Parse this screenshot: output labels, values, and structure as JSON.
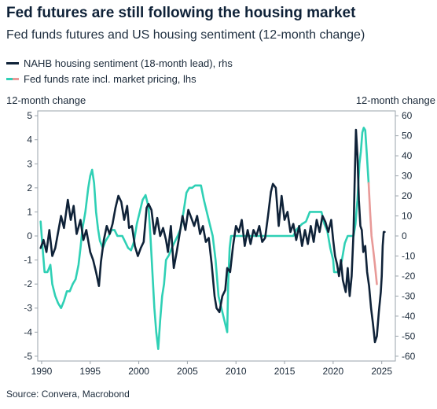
{
  "title": "Fed futures are still following the housing market",
  "subtitle": "Fed funds futures and US housing sentiment (12-month change)",
  "source": "Source: Convera, Macrobond",
  "chart_data": {
    "type": "line",
    "title": "Fed futures are still following the housing market",
    "subtitle": "Fed funds futures and US housing sentiment (12-month change)",
    "ylabel_left": "12-month change",
    "ylabel_right": "12-month change",
    "x_ticks": [
      "1990",
      "1995",
      "2000",
      "2005",
      "2010",
      "2015",
      "2020",
      "2025"
    ],
    "xlim": [
      1989.6,
      2026.4
    ],
    "y_left": {
      "lim": [
        -5.2,
        5.2
      ],
      "ticks": [
        5,
        4,
        3,
        2,
        1,
        0,
        -1,
        -2,
        -3,
        -4,
        -5
      ]
    },
    "y_right": {
      "lim": [
        -62.4,
        62.4
      ],
      "ticks": [
        60,
        50,
        40,
        30,
        20,
        10,
        0,
        -10,
        -20,
        -30,
        -40,
        -50,
        -60
      ]
    },
    "legend": "top-left",
    "grid": false,
    "series": [
      {
        "name": "NAHB housing sentiment (18-month lead), rhs",
        "axis": "right",
        "color": "#0f2238",
        "points": [
          [
            1989.9,
            -6
          ],
          [
            1990.2,
            -2
          ],
          [
            1990.5,
            -8
          ],
          [
            1990.8,
            3
          ],
          [
            1991.1,
            -10
          ],
          [
            1991.4,
            -6
          ],
          [
            1991.7,
            2
          ],
          [
            1992.0,
            10
          ],
          [
            1992.3,
            4
          ],
          [
            1992.7,
            18
          ],
          [
            1993.0,
            8
          ],
          [
            1993.3,
            15
          ],
          [
            1993.6,
            1
          ],
          [
            1994.0,
            8
          ],
          [
            1994.3,
            -2
          ],
          [
            1994.6,
            3
          ],
          [
            1995.0,
            -8
          ],
          [
            1995.3,
            -12
          ],
          [
            1995.6,
            -18
          ],
          [
            1995.9,
            -25
          ],
          [
            1996.1,
            -13
          ],
          [
            1996.4,
            -2
          ],
          [
            1996.7,
            5
          ],
          [
            1997.0,
            1
          ],
          [
            1997.3,
            6
          ],
          [
            1997.6,
            14
          ],
          [
            1997.9,
            20
          ],
          [
            1998.2,
            17
          ],
          [
            1998.5,
            8
          ],
          [
            1998.8,
            15
          ],
          [
            1999.0,
            4
          ],
          [
            1999.3,
            5
          ],
          [
            1999.6,
            -5
          ],
          [
            1999.9,
            -10
          ],
          [
            2000.2,
            -6
          ],
          [
            2000.5,
            -3
          ],
          [
            2000.8,
            14
          ],
          [
            2001.0,
            16
          ],
          [
            2001.3,
            13
          ],
          [
            2001.6,
            1
          ],
          [
            2001.9,
            9
          ],
          [
            2002.2,
            0
          ],
          [
            2002.5,
            4
          ],
          [
            2002.8,
            -2
          ],
          [
            2003.0,
            -8
          ],
          [
            2003.3,
            5
          ],
          [
            2003.6,
            -16
          ],
          [
            2003.9,
            -8
          ],
          [
            2004.1,
            -2
          ],
          [
            2004.5,
            10
          ],
          [
            2004.8,
            3
          ],
          [
            2005.1,
            13
          ],
          [
            2005.4,
            9
          ],
          [
            2005.7,
            5
          ],
          [
            2006.0,
            10
          ],
          [
            2006.3,
            1
          ],
          [
            2006.6,
            5
          ],
          [
            2006.9,
            -3
          ],
          [
            2007.2,
            -1
          ],
          [
            2007.5,
            -14
          ],
          [
            2007.8,
            -30
          ],
          [
            2008.0,
            -36
          ],
          [
            2008.3,
            -38
          ],
          [
            2008.6,
            -30
          ],
          [
            2008.9,
            -27
          ],
          [
            2009.1,
            -16
          ],
          [
            2009.4,
            -18
          ],
          [
            2009.7,
            -5
          ],
          [
            2010.0,
            5
          ],
          [
            2010.3,
            2
          ],
          [
            2010.6,
            8
          ],
          [
            2010.9,
            -5
          ],
          [
            2011.2,
            3
          ],
          [
            2011.5,
            -4
          ],
          [
            2011.8,
            3
          ],
          [
            2012.1,
            0
          ],
          [
            2012.4,
            5
          ],
          [
            2012.7,
            -3
          ],
          [
            2013.0,
            -1
          ],
          [
            2013.3,
            10
          ],
          [
            2013.6,
            22
          ],
          [
            2013.8,
            26
          ],
          [
            2014.1,
            24
          ],
          [
            2014.4,
            5
          ],
          [
            2014.7,
            20
          ],
          [
            2015.0,
            8
          ],
          [
            2015.3,
            12
          ],
          [
            2015.6,
            2
          ],
          [
            2015.9,
            6
          ],
          [
            2016.2,
            -2
          ],
          [
            2016.5,
            5
          ],
          [
            2016.8,
            -5
          ],
          [
            2017.1,
            3
          ],
          [
            2017.4,
            -4
          ],
          [
            2017.7,
            5
          ],
          [
            2018.0,
            -3
          ],
          [
            2018.3,
            8
          ],
          [
            2018.6,
            2
          ],
          [
            2018.9,
            10
          ],
          [
            2019.2,
            7
          ],
          [
            2019.5,
            2
          ],
          [
            2019.8,
            8
          ],
          [
            2020.0,
            -2
          ],
          [
            2020.2,
            -10
          ],
          [
            2020.4,
            -14
          ],
          [
            2020.6,
            -20
          ],
          [
            2020.8,
            -12
          ],
          [
            2021.0,
            -22
          ],
          [
            2021.3,
            -28
          ],
          [
            2021.5,
            -16
          ],
          [
            2021.7,
            -30
          ],
          [
            2021.9,
            -20
          ],
          [
            2022.1,
            2
          ],
          [
            2022.2,
            25
          ],
          [
            2022.35,
            53
          ],
          [
            2022.5,
            40
          ],
          [
            2022.65,
            18
          ],
          [
            2022.8,
            5
          ],
          [
            2022.95,
            3
          ],
          [
            2023.1,
            -8
          ],
          [
            2023.3,
            -5
          ],
          [
            2023.5,
            -18
          ],
          [
            2023.7,
            -25
          ],
          [
            2023.9,
            -36
          ],
          [
            2024.1,
            -44
          ],
          [
            2024.3,
            -53
          ],
          [
            2024.5,
            -50
          ],
          [
            2024.7,
            -38
          ],
          [
            2024.9,
            -28
          ],
          [
            2025.0,
            -20
          ],
          [
            2025.1,
            -5
          ],
          [
            2025.2,
            2
          ],
          [
            2025.3,
            2
          ]
        ]
      },
      {
        "name": "Fed funds rate incl. market pricing, lhs",
        "axis": "left",
        "color": "#2fd0b5",
        "projection_color": "#e89a98",
        "projection_from": 2023.65,
        "points": [
          [
            1989.9,
            0.6
          ],
          [
            1990.1,
            -0.5
          ],
          [
            1990.3,
            -1.5
          ],
          [
            1990.6,
            -1.5
          ],
          [
            1990.9,
            -1.2
          ],
          [
            1991.1,
            -2.0
          ],
          [
            1991.4,
            -2.5
          ],
          [
            1991.7,
            -2.8
          ],
          [
            1992.0,
            -3.0
          ],
          [
            1992.3,
            -2.7
          ],
          [
            1992.6,
            -2.3
          ],
          [
            1992.9,
            -2.3
          ],
          [
            1993.2,
            -2.0
          ],
          [
            1993.5,
            -1.8
          ],
          [
            1993.8,
            -1.2
          ],
          [
            1994.0,
            -0.5
          ],
          [
            1994.2,
            0.3
          ],
          [
            1994.5,
            1.0
          ],
          [
            1994.8,
            2.0
          ],
          [
            1995.0,
            2.5
          ],
          [
            1995.2,
            2.75
          ],
          [
            1995.4,
            2.2
          ],
          [
            1995.6,
            1.0
          ],
          [
            1995.8,
            0.3
          ],
          [
            1996.0,
            -0.2
          ],
          [
            1996.3,
            -0.5
          ],
          [
            1996.6,
            -0.2
          ],
          [
            1996.9,
            0.0
          ],
          [
            1997.2,
            0.25
          ],
          [
            1997.5,
            0.25
          ],
          [
            1997.8,
            0.0
          ],
          [
            1998.0,
            0.0
          ],
          [
            1998.3,
            0.0
          ],
          [
            1998.6,
            -0.25
          ],
          [
            1998.9,
            -0.5
          ],
          [
            1999.2,
            -0.6
          ],
          [
            1999.5,
            -0.25
          ],
          [
            1999.8,
            0.5
          ],
          [
            2000.1,
            1.0
          ],
          [
            2000.4,
            1.5
          ],
          [
            2000.7,
            1.7
          ],
          [
            2001.0,
            1.2
          ],
          [
            2001.2,
            0.0
          ],
          [
            2001.4,
            -1.5
          ],
          [
            2001.6,
            -3.0
          ],
          [
            2001.8,
            -4.0
          ],
          [
            2002.0,
            -4.7
          ],
          [
            2002.2,
            -3.5
          ],
          [
            2002.4,
            -2.5
          ],
          [
            2002.6,
            -2.0
          ],
          [
            2002.8,
            -1.0
          ],
          [
            2003.1,
            -0.8
          ],
          [
            2003.4,
            -0.5
          ],
          [
            2003.7,
            -0.25
          ],
          [
            2004.0,
            0.0
          ],
          [
            2004.3,
            0.3
          ],
          [
            2004.6,
            1.0
          ],
          [
            2004.9,
            1.8
          ],
          [
            2005.2,
            2.0
          ],
          [
            2005.5,
            2.0
          ],
          [
            2005.8,
            2.1
          ],
          [
            2006.1,
            2.1
          ],
          [
            2006.4,
            2.1
          ],
          [
            2006.7,
            1.5
          ],
          [
            2007.0,
            1.0
          ],
          [
            2007.3,
            0.5
          ],
          [
            2007.6,
            0.0
          ],
          [
            2007.9,
            -1.0
          ],
          [
            2008.2,
            -2.5
          ],
          [
            2008.5,
            -3.0
          ],
          [
            2008.8,
            -3.5
          ],
          [
            2009.1,
            -4.0
          ],
          [
            2009.2,
            -2.0
          ],
          [
            2009.35,
            -0.5
          ],
          [
            2009.5,
            0.0
          ],
          [
            2010.0,
            0.0
          ],
          [
            2011.0,
            0.0
          ],
          [
            2012.0,
            0.0
          ],
          [
            2013.0,
            0.0
          ],
          [
            2014.0,
            0.0
          ],
          [
            2015.0,
            0.0
          ],
          [
            2015.9,
            0.0
          ],
          [
            2016.2,
            0.25
          ],
          [
            2016.8,
            0.5
          ],
          [
            2017.2,
            0.6
          ],
          [
            2017.6,
            1.0
          ],
          [
            2018.0,
            1.0
          ],
          [
            2018.4,
            1.0
          ],
          [
            2018.8,
            1.0
          ],
          [
            2019.1,
            0.5
          ],
          [
            2019.4,
            0.2
          ],
          [
            2019.7,
            -0.5
          ],
          [
            2020.0,
            -1.0
          ],
          [
            2020.1,
            -1.5
          ],
          [
            2020.3,
            -1.5
          ],
          [
            2020.6,
            -1.5
          ],
          [
            2020.9,
            -1.0
          ],
          [
            2021.2,
            -0.3
          ],
          [
            2021.5,
            0.0
          ],
          [
            2021.8,
            0.0
          ],
          [
            2022.1,
            0.0
          ],
          [
            2022.3,
            0.5
          ],
          [
            2022.5,
            1.5
          ],
          [
            2022.7,
            3.0
          ],
          [
            2022.85,
            3.5
          ],
          [
            2023.0,
            4.3
          ],
          [
            2023.15,
            4.5
          ],
          [
            2023.3,
            4.4
          ],
          [
            2023.45,
            3.5
          ],
          [
            2023.6,
            2.5
          ],
          [
            2023.65,
            2.2
          ],
          [
            2023.8,
            1.0
          ],
          [
            2023.95,
            0.0
          ],
          [
            2024.1,
            -0.5
          ],
          [
            2024.3,
            -1.2
          ],
          [
            2024.5,
            -2.0
          ]
        ]
      }
    ]
  },
  "legend_items": [
    {
      "label": "NAHB housing sentiment (18-month lead), rhs"
    },
    {
      "label": "Fed funds rate incl. market pricing, lhs"
    }
  ]
}
